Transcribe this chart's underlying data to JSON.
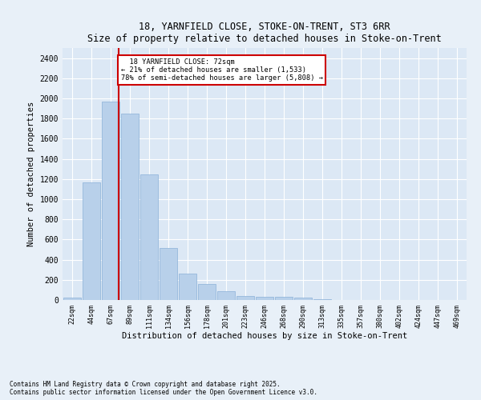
{
  "title1": "18, YARNFIELD CLOSE, STOKE-ON-TRENT, ST3 6RR",
  "title2": "Size of property relative to detached houses in Stoke-on-Trent",
  "xlabel": "Distribution of detached houses by size in Stoke-on-Trent",
  "ylabel": "Number of detached properties",
  "categories": [
    "22sqm",
    "44sqm",
    "67sqm",
    "89sqm",
    "111sqm",
    "134sqm",
    "156sqm",
    "178sqm",
    "201sqm",
    "223sqm",
    "246sqm",
    "268sqm",
    "290sqm",
    "313sqm",
    "335sqm",
    "357sqm",
    "380sqm",
    "402sqm",
    "424sqm",
    "447sqm",
    "469sqm"
  ],
  "values": [
    20,
    1170,
    1970,
    1850,
    1245,
    515,
    265,
    155,
    90,
    40,
    35,
    30,
    20,
    10,
    3,
    2,
    1,
    1,
    0,
    0,
    0
  ],
  "bar_color": "#b8d0ea",
  "bar_edgecolor": "#8ab0d8",
  "red_line_x": 2.43,
  "annotation_text": "  18 YARNFIELD CLOSE: 72sqm\n← 21% of detached houses are smaller (1,533)\n78% of semi-detached houses are larger (5,808) →",
  "annotation_box_color": "#ffffff",
  "annotation_box_edgecolor": "#cc0000",
  "red_line_color": "#cc0000",
  "background_color": "#dce8f5",
  "fig_background_color": "#e8f0f8",
  "grid_color": "#ffffff",
  "ylim": [
    0,
    2500
  ],
  "yticks": [
    0,
    200,
    400,
    600,
    800,
    1000,
    1200,
    1400,
    1600,
    1800,
    2000,
    2200,
    2400
  ],
  "footer1": "Contains HM Land Registry data © Crown copyright and database right 2025.",
  "footer2": "Contains public sector information licensed under the Open Government Licence v3.0."
}
